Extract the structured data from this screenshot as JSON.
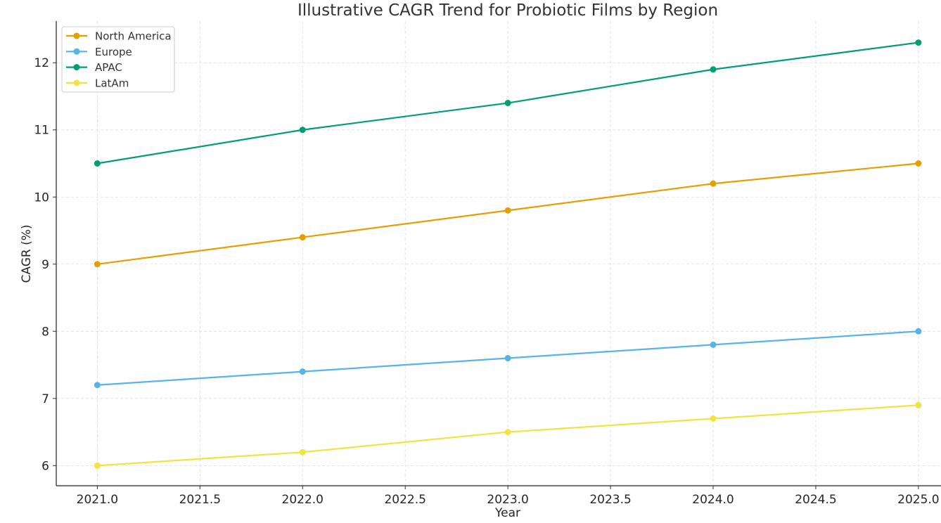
{
  "chart_data": {
    "type": "line",
    "title": "Illustrative CAGR Trend for Probiotic Films by Region",
    "xlabel": "Year",
    "ylabel": "CAGR (%)",
    "x": [
      2021,
      2022,
      2023,
      2024,
      2025
    ],
    "xlim": [
      2020.8,
      2025.11
    ],
    "ylim": [
      5.7,
      12.62
    ],
    "xticks": [
      "2021.0",
      "2021.5",
      "2022.0",
      "2022.5",
      "2023.0",
      "2023.5",
      "2024.0",
      "2024.5",
      "2025.0"
    ],
    "yticks": [
      "6",
      "7",
      "8",
      "9",
      "10",
      "11",
      "12"
    ],
    "grid": true,
    "legend_placement": "top-left",
    "series": [
      {
        "name": "North America",
        "color": "#E69F00",
        "values": [
          9.0,
          9.4,
          9.8,
          10.2,
          10.5
        ]
      },
      {
        "name": "Europe",
        "color": "#56B4E9",
        "values": [
          7.2,
          7.4,
          7.6,
          7.8,
          8.0
        ]
      },
      {
        "name": "APAC",
        "color": "#009E73",
        "values": [
          10.5,
          11.0,
          11.4,
          11.9,
          12.3
        ]
      },
      {
        "name": "LatAm",
        "color": "#F0E442",
        "values": [
          6.0,
          6.2,
          6.5,
          6.7,
          6.9
        ]
      }
    ]
  }
}
